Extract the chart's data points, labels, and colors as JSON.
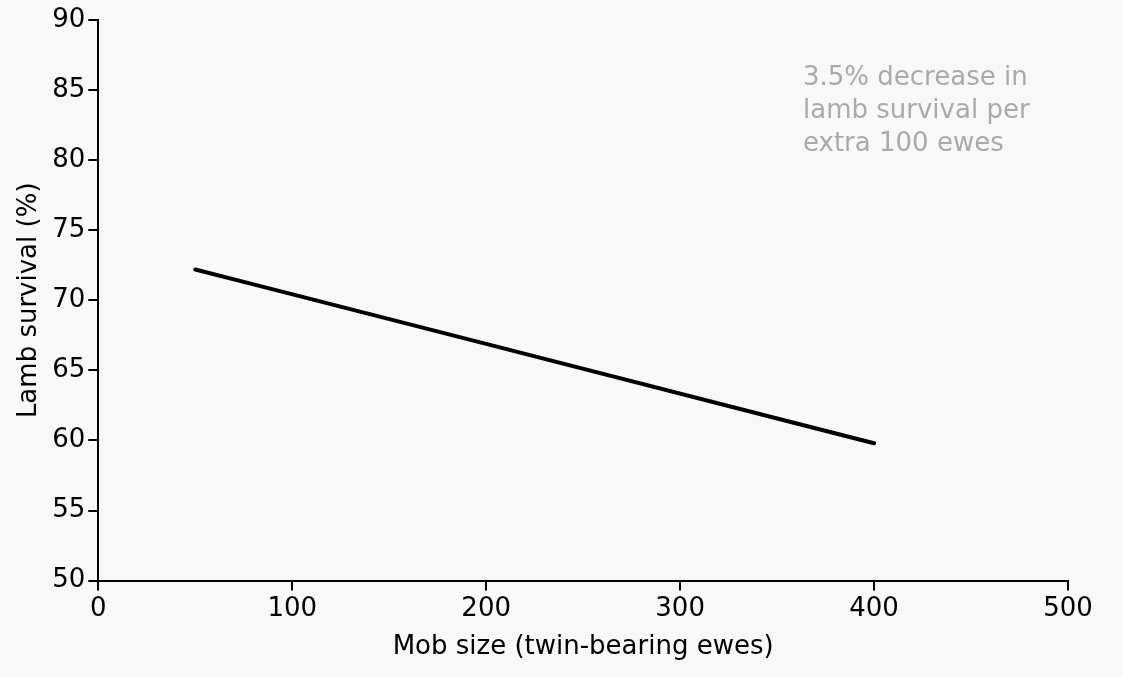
{
  "chart_data": {
    "type": "line",
    "xlabel": "Mob size (twin-bearing ewes)",
    "ylabel": "Lamb survival (%)",
    "x": [
      50,
      400
    ],
    "series": [
      {
        "color": "#000000",
        "values": [
          72.2,
          59.8
        ]
      }
    ],
    "xlim": [
      0,
      500
    ],
    "xticks": [
      0,
      100,
      200,
      300,
      400,
      500
    ],
    "ylim": [
      50,
      90
    ],
    "yticks": [
      50,
      55,
      60,
      65,
      70,
      75,
      80,
      85,
      90
    ],
    "grid": false,
    "legend": false,
    "marker": "none",
    "line_style": "solid",
    "annotations": [
      "3.5% decrease in lamb survival per extra 100 ewes"
    ]
  }
}
